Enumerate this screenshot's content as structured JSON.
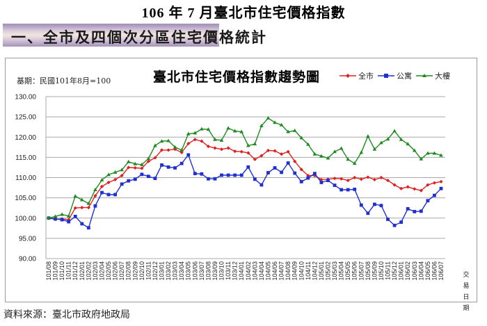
{
  "page": {
    "title": "106 年 7 月臺北市住宅價格指數",
    "section_title": "一、全市及四個次分區住宅價格統計",
    "source": "資料來源：臺北市政府地政局"
  },
  "chart": {
    "base_label": "基期：民國101年8月=100",
    "title": "臺北市住宅價格指數趨勢圖",
    "x_axis_title_line1": "交易",
    "x_axis_title_line2": "日期",
    "legend": [
      {
        "name": "全市",
        "color": "#e02020",
        "marker": "diamond"
      },
      {
        "name": "公寓",
        "color": "#1f2fd0",
        "marker": "square"
      },
      {
        "name": "大樓",
        "color": "#1f8a1f",
        "marker": "triangle"
      }
    ]
  },
  "chart_data": {
    "type": "line",
    "title": "臺北市住宅價格指數趨勢圖",
    "subtitle": "基期：民國101年8月=100",
    "xlabel": "交易日期",
    "ylabel": "",
    "ylim": [
      90,
      130
    ],
    "yticks": [
      "90.00",
      "95.00",
      "100.00",
      "105.00",
      "110.00",
      "115.00",
      "120.00",
      "125.00",
      "130.00"
    ],
    "grid": true,
    "legend_position": "top-right",
    "categories": [
      "101/08",
      "101/09",
      "101/10",
      "101/11",
      "101/12",
      "102/01",
      "102/02",
      "102/03",
      "102/04",
      "102/05",
      "102/06",
      "102/07",
      "102/08",
      "102/09",
      "102/10",
      "102/11",
      "102/12",
      "103/01",
      "103/02",
      "103/03",
      "103/04",
      "103/05",
      "103/06",
      "103/07",
      "103/08",
      "103/09",
      "103/10",
      "103/11",
      "103/12",
      "104/01",
      "104/02",
      "104/03",
      "104/04",
      "104/05",
      "104/06",
      "104/07",
      "104/08",
      "104/09",
      "104/10",
      "104/11",
      "104/12",
      "105/01",
      "105/02",
      "105/03",
      "105/04",
      "105/05",
      "105/06",
      "105/07",
      "105/08",
      "105/09",
      "105/10",
      "105/11",
      "105/12",
      "106/01",
      "106/02",
      "106/03",
      "106/04",
      "106/05",
      "106/06",
      "106/07"
    ],
    "series": [
      {
        "name": "全市",
        "color": "#e02020",
        "values": [
          100.0,
          99.7,
          99.8,
          99.6,
          102.5,
          102.6,
          102.6,
          105.5,
          107.8,
          108.8,
          109.5,
          110.5,
          112.5,
          112.4,
          112.3,
          114.0,
          114.9,
          116.8,
          116.8,
          117.0,
          116.2,
          118.4,
          119.4,
          119.0,
          117.7,
          117.3,
          117.0,
          117.3,
          116.5,
          116.4,
          116.1,
          114.5,
          115.4,
          116.7,
          116.6,
          115.8,
          116.4,
          114.0,
          112.0,
          110.5,
          110.5,
          109.5,
          109.6,
          109.8,
          109.7,
          109.3,
          110.0,
          109.6,
          110.1,
          109.5,
          110.0,
          109.3,
          108.2,
          107.3,
          107.7,
          107.2,
          106.8,
          108.2,
          108.7,
          109.0
        ]
      },
      {
        "name": "公寓",
        "color": "#1f2fd0",
        "values": [
          100.0,
          99.8,
          99.6,
          99.1,
          100.4,
          98.6,
          97.6,
          103.0,
          106.3,
          105.8,
          105.8,
          108.4,
          109.2,
          109.6,
          110.8,
          110.3,
          109.8,
          113.1,
          112.6,
          112.4,
          113.5,
          115.6,
          111.0,
          110.9,
          109.7,
          109.7,
          110.6,
          110.6,
          110.6,
          110.6,
          112.6,
          109.6,
          108.2,
          111.2,
          112.4,
          111.3,
          113.6,
          111.1,
          109.0,
          109.9,
          111.0,
          108.8,
          109.3,
          108.1,
          107.0,
          107.0,
          107.1,
          103.2,
          101.2,
          103.4,
          103.1,
          99.7,
          98.2,
          99.0,
          102.3,
          101.6,
          101.7,
          104.3,
          105.6,
          107.3
        ]
      },
      {
        "name": "大樓",
        "color": "#1f8a1f",
        "values": [
          100.0,
          100.4,
          100.9,
          100.5,
          105.4,
          104.5,
          103.6,
          107.0,
          109.4,
          110.7,
          111.3,
          111.9,
          113.9,
          113.4,
          113.2,
          114.7,
          117.9,
          119.0,
          119.1,
          117.5,
          116.8,
          120.8,
          121.0,
          122.0,
          121.9,
          119.4,
          119.2,
          122.2,
          121.5,
          121.3,
          117.9,
          118.3,
          122.8,
          124.7,
          123.6,
          123.0,
          121.3,
          121.6,
          119.8,
          118.2,
          115.8,
          115.3,
          114.8,
          116.4,
          117.2,
          114.5,
          113.5,
          116.2,
          120.2,
          117.0,
          118.6,
          119.5,
          121.5,
          119.4,
          118.3,
          116.7,
          114.6,
          116.0,
          116.0,
          115.5
        ]
      }
    ]
  }
}
